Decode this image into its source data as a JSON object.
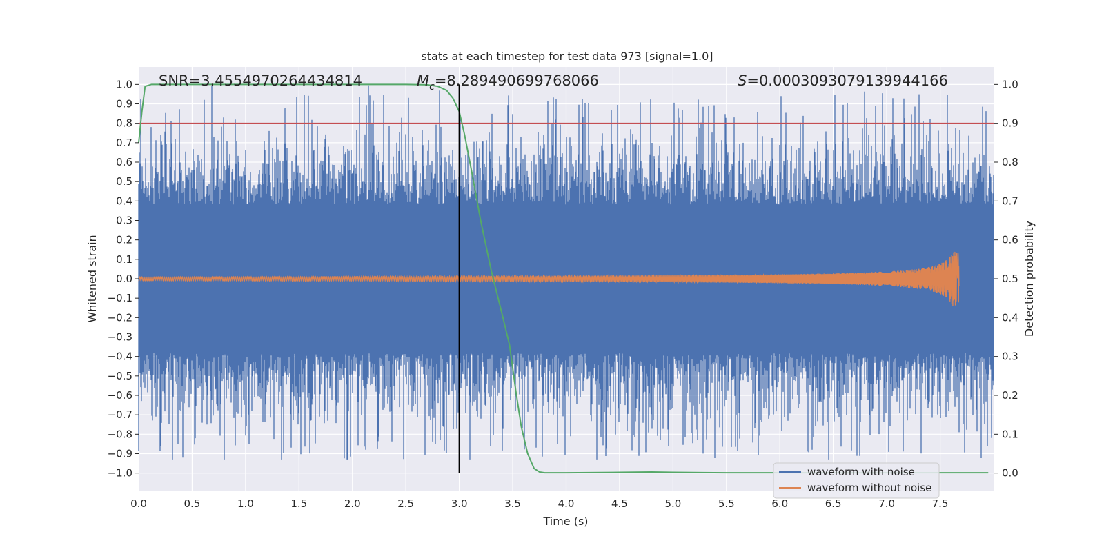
{
  "chart_data": {
    "type": "line",
    "title": "stats at each timestep for test data 973 [signal=1.0]",
    "xlabel": "Time (s)",
    "ylabel_left": "Whitened strain",
    "ylabel_right": "Detection probability",
    "xlim": [
      0.0,
      8.0
    ],
    "ylim_left": [
      -1.09,
      1.09
    ],
    "ylim_right": [
      -0.045,
      1.045
    ],
    "x_ticks": [
      "0.0",
      "0.5",
      "1.0",
      "1.5",
      "2.0",
      "2.5",
      "3.0",
      "3.5",
      "4.0",
      "4.5",
      "5.0",
      "5.5",
      "6.0",
      "6.5",
      "7.0",
      "7.5"
    ],
    "y_left_ticks": [
      "1.0",
      "0.9",
      "0.8",
      "0.7",
      "0.6",
      "0.5",
      "0.4",
      "0.3",
      "0.2",
      "0.1",
      "0.0",
      "−0.1",
      "−0.2",
      "−0.3",
      "−0.4",
      "−0.5",
      "−0.6",
      "−0.7",
      "−0.8",
      "−0.9",
      "−1.0"
    ],
    "y_right_ticks": [
      "1.0",
      "0.9",
      "0.8",
      "0.7",
      "0.6",
      "0.5",
      "0.4",
      "0.3",
      "0.2",
      "0.1",
      "0.0"
    ],
    "annotations": {
      "snr": "SNR=3.4554970264434814",
      "mc_symbol": "M",
      "mc_subscript": "c",
      "mc_value": "=8.289490699768066",
      "s_symbol": "S",
      "s_value": "=0.0003093079139944166"
    },
    "threshold": {
      "value": 0.9,
      "axis": "right",
      "color": "#c44e52"
    },
    "vertical_marker": {
      "x": 3.0,
      "color": "#000000"
    },
    "series": [
      {
        "name": "waveform with noise",
        "color": "#4c72b0",
        "axis": "left",
        "kind": "noise",
        "x_range": [
          0.0,
          8.0
        ],
        "base_amplitude": 0.45,
        "peak_range": [
          -0.93,
          1.0
        ]
      },
      {
        "name": "waveform without noise",
        "color": "#dd8452",
        "axis": "left",
        "kind": "chirp",
        "x_range": [
          0.0,
          7.68
        ],
        "amplitude_start": 0.01,
        "amplitude_peak": 0.14,
        "merger_time": 7.68
      },
      {
        "name": "Detection probability",
        "color": "#55a868",
        "axis": "right",
        "kind": "line",
        "x": [
          0.0,
          0.03,
          0.06,
          0.12,
          0.2,
          0.5,
          1.0,
          1.5,
          2.0,
          2.5,
          2.7,
          2.8,
          2.88,
          2.94,
          3.0,
          3.05,
          3.12,
          3.2,
          3.3,
          3.4,
          3.47,
          3.53,
          3.58,
          3.64,
          3.7,
          3.75,
          3.8,
          4.0,
          4.5,
          4.8,
          5.0,
          5.5,
          6.0,
          6.5,
          7.0,
          7.5,
          7.95
        ],
        "y": [
          0.85,
          0.93,
          0.995,
          1.0,
          1.0,
          1.0,
          1.0,
          1.0,
          1.0,
          1.0,
          0.999,
          0.995,
          0.985,
          0.965,
          0.93,
          0.87,
          0.77,
          0.65,
          0.52,
          0.41,
          0.33,
          0.21,
          0.12,
          0.05,
          0.012,
          0.003,
          0.001,
          0.001,
          0.002,
          0.003,
          0.002,
          0.001,
          0.001,
          0.001,
          0.001,
          0.001,
          0.001
        ]
      }
    ],
    "legend": {
      "position": "lower-right",
      "entries": [
        {
          "label": "waveform with noise",
          "color": "#4c72b0"
        },
        {
          "label": "waveform without noise",
          "color": "#dd8452"
        }
      ]
    },
    "background": "#eaeaf2",
    "grid": true
  }
}
